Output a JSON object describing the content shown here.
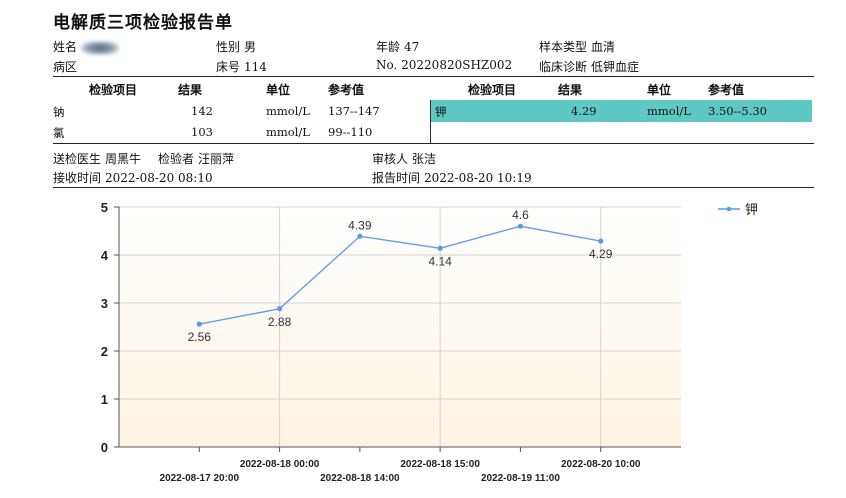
{
  "report": {
    "title": "电解质三项检验报告单"
  },
  "patient": {
    "name_label": "姓名",
    "sex_label": "性别",
    "sex": "男",
    "age_label": "年龄",
    "age": "47",
    "sample_type_label": "样本类型",
    "sample_type": "血清",
    "ward_label": "病区",
    "bed_label": "床号",
    "bed": "114",
    "number": "No. 20220820SHZ002",
    "diagnosis_label": "临床诊断",
    "diagnosis": "低钾血症"
  },
  "table": {
    "headers": [
      "检验项目",
      "结果",
      "单位",
      "参考值"
    ],
    "left_rows": [
      {
        "item": "钠",
        "result": "142",
        "unit": "mmol/L",
        "ref": "137--147"
      },
      {
        "item": "氯",
        "result": "103",
        "unit": "mmol/L",
        "ref": "99--110"
      }
    ],
    "right_rows": [
      {
        "item": "钾",
        "result": "4.29",
        "unit": "mmol/L",
        "ref": "3.50--5.30"
      }
    ]
  },
  "footer": {
    "sender_label": "送检医生",
    "sender": "周黑牛",
    "examiner_label": "检验者",
    "examiner": "汪丽萍",
    "reviewer_label": "审核人",
    "reviewer": "张洁",
    "received_label": "接收时间",
    "received": "2022-08-20 08:10",
    "reported_label": "报告时间",
    "reported": "2022-08-20 10:19"
  },
  "colors": {
    "highlight": "#5ec8c4",
    "series": "#5b9bea",
    "plot_bg_top": "#ffffff",
    "plot_bg_bottom": "#fdf3e3"
  },
  "chart_data": {
    "type": "line",
    "x": [
      "2022-08-17 20:00",
      "2022-08-18 00:00",
      "2022-08-18 14:00",
      "2022-08-18 15:00",
      "2022-08-19 11:00",
      "2022-08-20 10:00"
    ],
    "series": [
      {
        "name": "钾",
        "values": [
          2.56,
          2.88,
          4.39,
          4.14,
          4.6,
          4.29
        ]
      }
    ],
    "ylim": [
      0,
      5
    ],
    "yticks": [
      "0",
      "1",
      "2",
      "3",
      "4",
      "5"
    ],
    "xtick_labels_upper": [
      "2022-08-18 00:00",
      "2022-08-18 15:00",
      "2022-08-20 10:00"
    ],
    "xtick_labels_lower": [
      "2022-08-17 20:00",
      "2022-08-18 14:00",
      "2022-08-19 11:00"
    ],
    "grid": true,
    "legend": "top-right"
  }
}
